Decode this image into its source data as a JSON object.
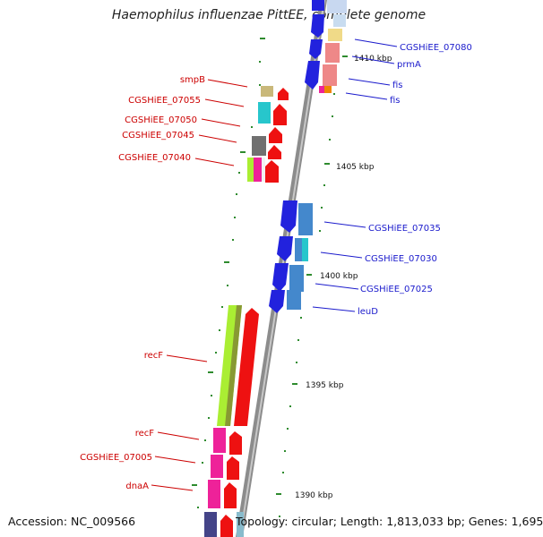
{
  "title": "Haemophilus influenzae PittEE, complete genome",
  "footer": {
    "accession": "Accession: NC_009566",
    "topology": "Topology: circular; Length: 1,813,033 bp; Genes: 1,695"
  },
  "colors": {
    "backbone": "#8c8c8c",
    "left_label": "#cc0000",
    "right_label": "#1a1acc",
    "tick": "#2e8b2e"
  },
  "scale_labels": [
    "1410 kbp",
    "1405 kbp",
    "1400 kbp",
    "1395 kbp",
    "1390 kbp"
  ],
  "left_labels": [
    "smpB",
    "CGSHiEE_07055",
    "CGSHiEE_07050",
    "CGSHiEE_07045",
    "CGSHiEE_07040",
    "recF",
    "recF",
    "CGSHiEE_07005",
    "dnaA"
  ],
  "right_labels": [
    "CGSHiEE_07080",
    "prmA",
    "fis",
    "fis",
    "CGSHiEE_07035",
    "CGSHiEE_07030",
    "CGSHiEE_07025",
    "leuD"
  ]
}
